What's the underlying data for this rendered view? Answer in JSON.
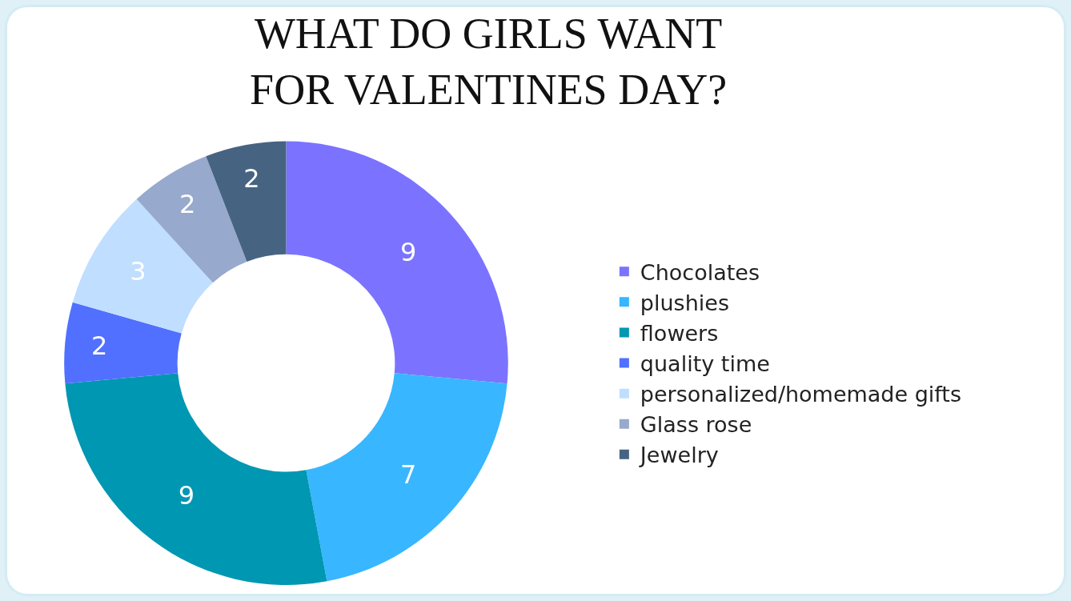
{
  "chart_data": {
    "type": "donut",
    "title": "WHAT DO GIRLS WANT FOR VALENTINES DAY?",
    "categories": [
      "Chocolates",
      "plushies",
      "flowers",
      "quality time",
      "personalized/homemade gifts",
      "Glass rose",
      "Jewelry"
    ],
    "values": [
      9,
      7,
      9,
      2,
      3,
      2,
      2
    ],
    "colors": [
      "#7b73ff",
      "#38b6ff",
      "#0097b2",
      "#5170ff",
      "#c0deff",
      "#97a9cc",
      "#466482"
    ],
    "data_labels": true,
    "legend": "right"
  }
}
